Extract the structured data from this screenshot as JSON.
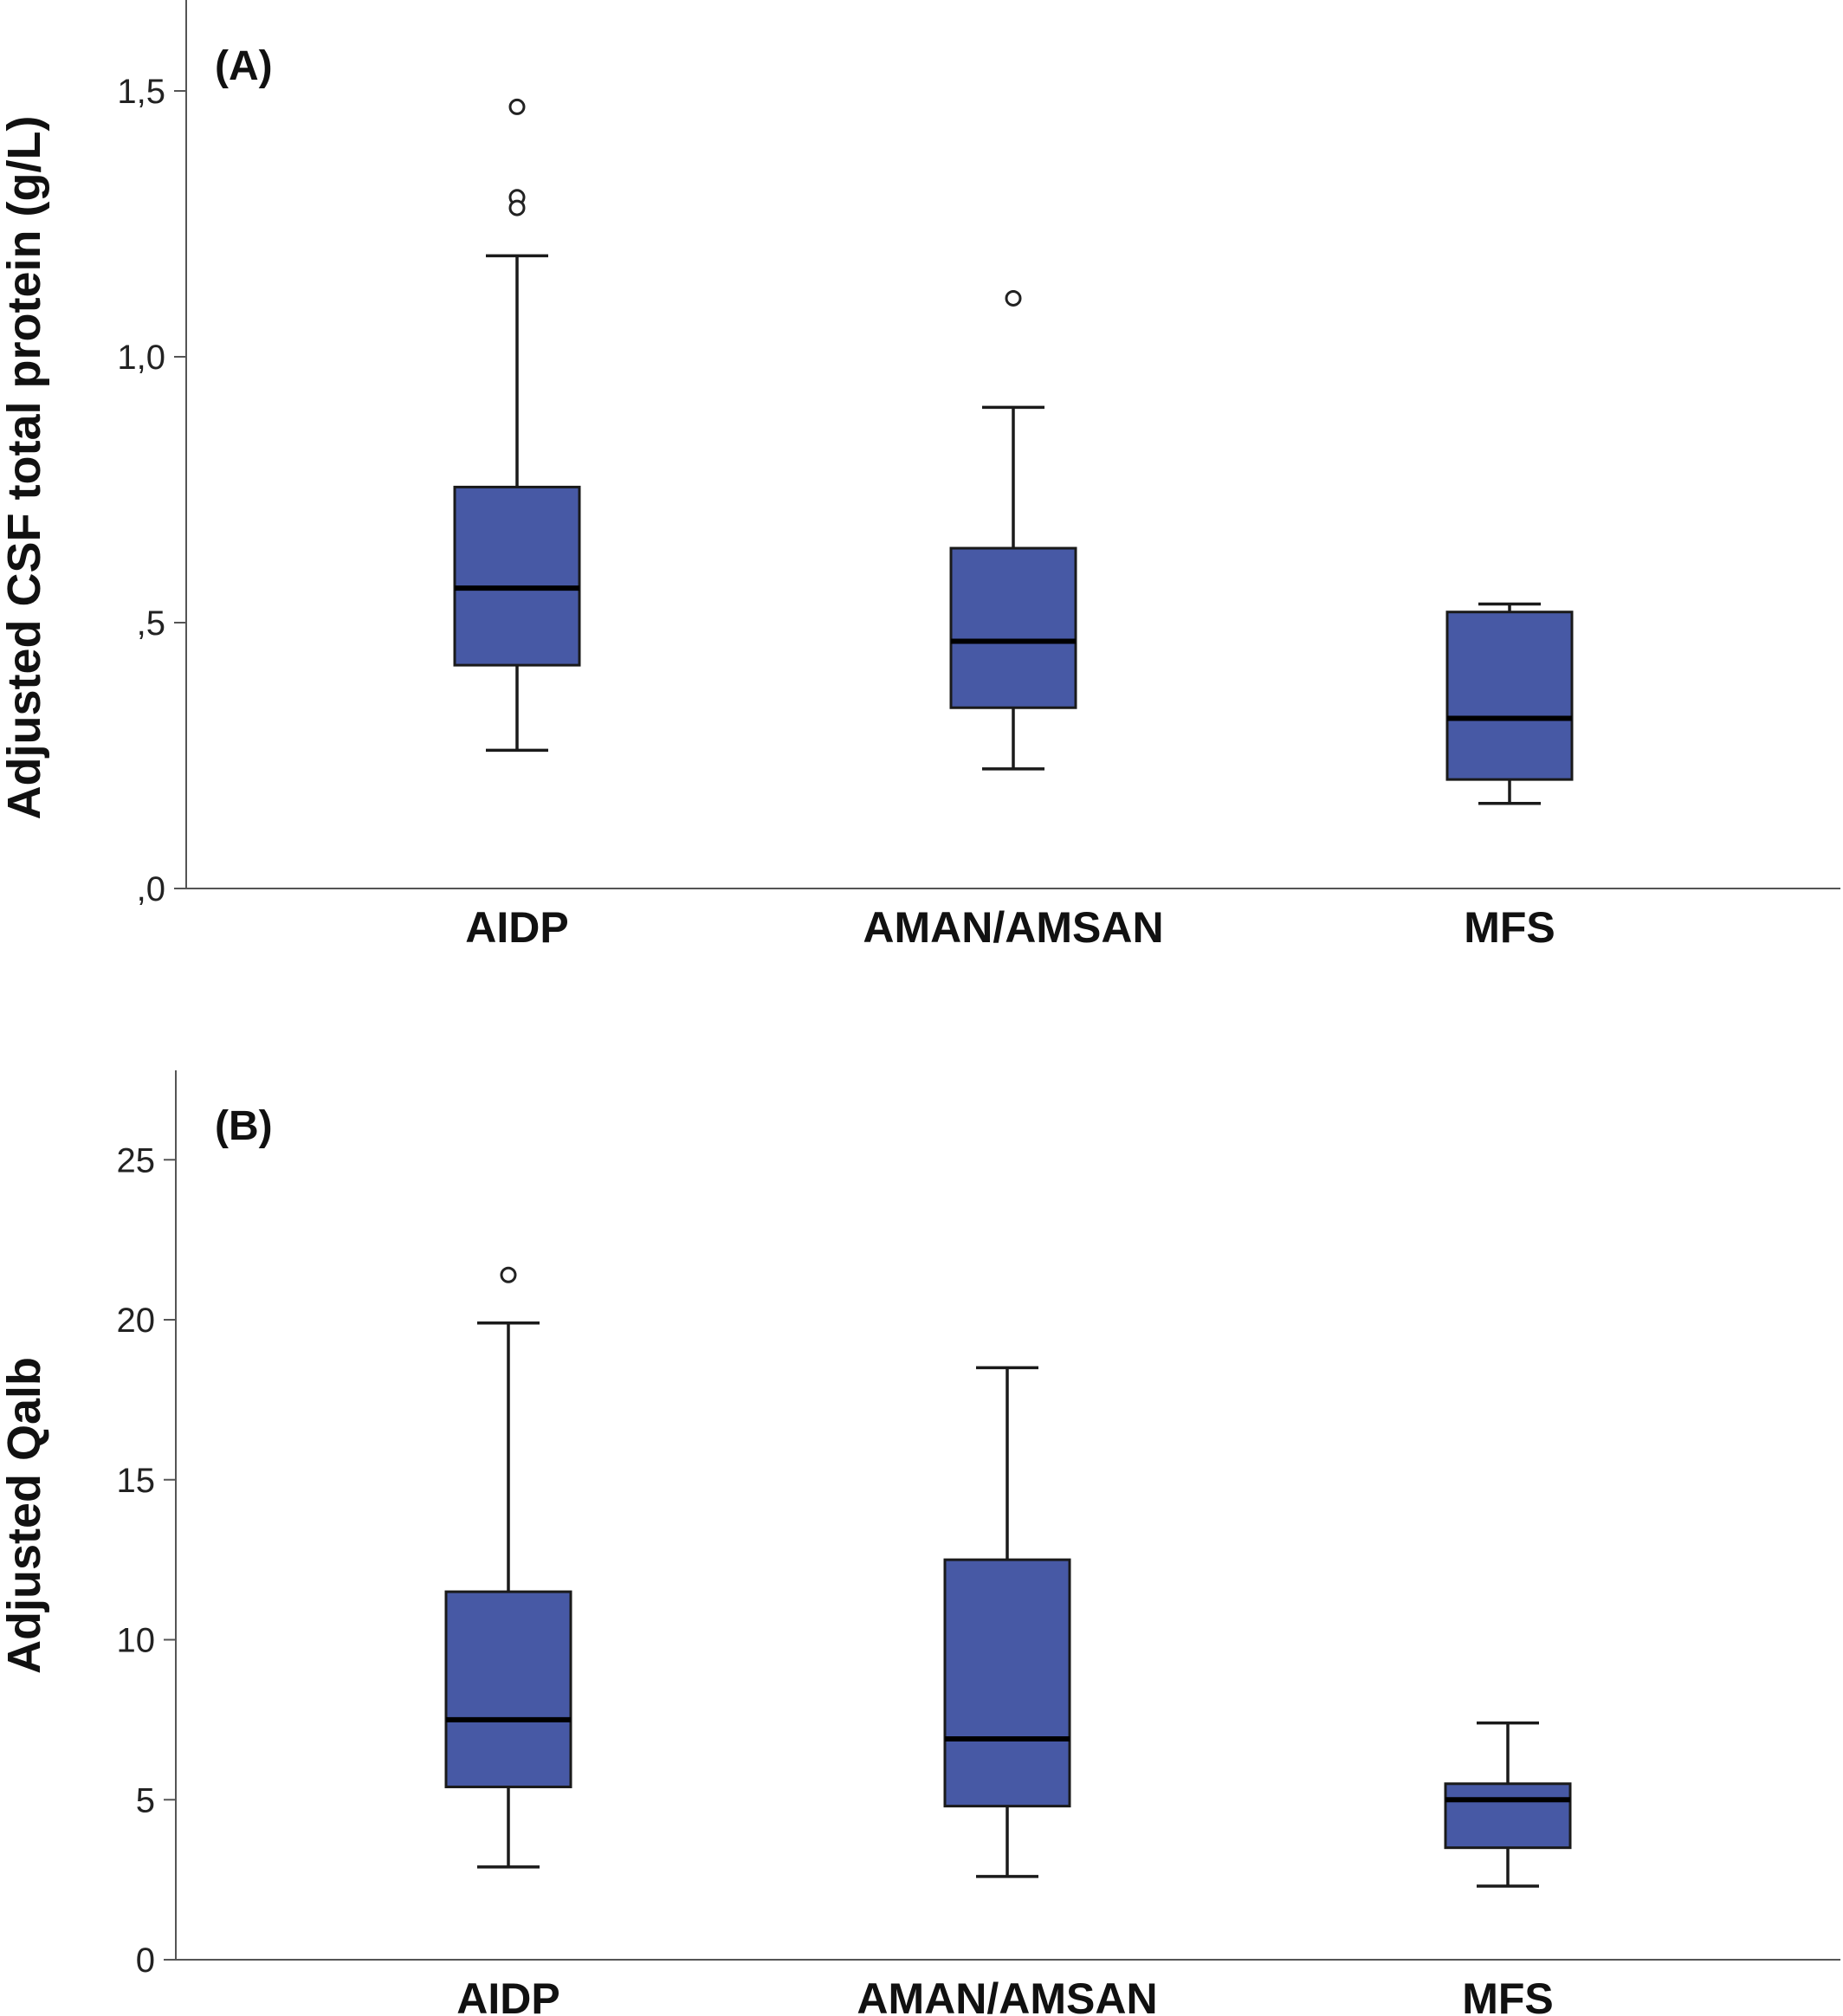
{
  "chart_data": [
    {
      "type": "box",
      "panel_label": "(A)",
      "ylabel": "Adjusted CSF total protein (g/L)",
      "xlabel": "",
      "ylim": [
        0,
        1.67
      ],
      "yticks": [
        0,
        0.5,
        1.0,
        1.5
      ],
      "ytick_labels": [
        ",0",
        ",5",
        "1,0",
        "1,5"
      ],
      "categories": [
        "AIDP",
        "AMAN/AMSAN",
        "MFS"
      ],
      "box_color": "#4759a5",
      "grid": false,
      "legend": "none",
      "boxes": [
        {
          "category": "AIDP",
          "whisker_low": 0.26,
          "q1": 0.42,
          "median": 0.565,
          "q3": 0.755,
          "whisker_high": 1.19,
          "outliers": [
            1.47,
            1.3,
            1.28
          ]
        },
        {
          "category": "AMAN/AMSAN",
          "whisker_low": 0.225,
          "q1": 0.34,
          "median": 0.465,
          "q3": 0.64,
          "whisker_high": 0.905,
          "outliers": [
            1.11
          ]
        },
        {
          "category": "MFS",
          "whisker_low": 0.16,
          "q1": 0.205,
          "median": 0.32,
          "q3": 0.52,
          "whisker_high": 0.535,
          "outliers": []
        }
      ]
    },
    {
      "type": "box",
      "panel_label": "(B)",
      "ylabel": "Adjusted Qalb",
      "xlabel": "",
      "ylim": [
        0,
        27.8
      ],
      "yticks": [
        0,
        5,
        10,
        15,
        20,
        25
      ],
      "ytick_labels": [
        "0",
        "5",
        "10",
        "15",
        "20",
        "25"
      ],
      "categories": [
        "AIDP",
        "AMAN/AMSAN",
        "MFS"
      ],
      "box_color": "#4759a5",
      "grid": false,
      "legend": "none",
      "boxes": [
        {
          "category": "AIDP",
          "whisker_low": 2.9,
          "q1": 5.4,
          "median": 7.5,
          "q3": 11.5,
          "whisker_high": 19.9,
          "outliers": [
            21.4
          ]
        },
        {
          "category": "AMAN/AMSAN",
          "whisker_low": 2.6,
          "q1": 4.8,
          "median": 6.9,
          "q3": 12.5,
          "whisker_high": 18.5,
          "outliers": []
        },
        {
          "category": "MFS",
          "whisker_low": 2.3,
          "q1": 3.5,
          "median": 5.0,
          "q3": 5.5,
          "whisker_high": 7.4,
          "outliers": []
        }
      ]
    }
  ]
}
